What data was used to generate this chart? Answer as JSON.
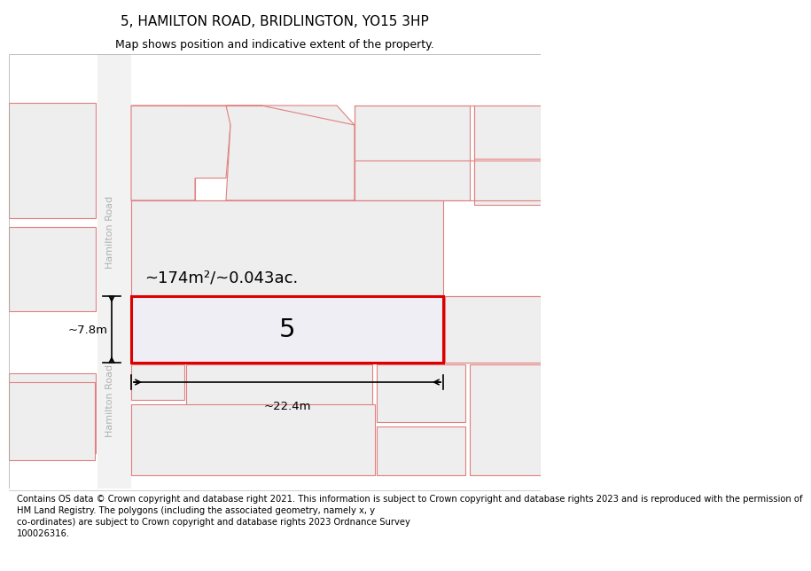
{
  "title": "5, HAMILTON ROAD, BRIDLINGTON, YO15 3HP",
  "subtitle": "Map shows position and indicative extent of the property.",
  "footer": "Contains OS data © Crown copyright and database right 2021. This information is subject to Crown copyright and database rights 2023 and is reproduced with the permission of\nHM Land Registry. The polygons (including the associated geometry, namely x, y\nco-ordinates) are subject to Crown copyright and database rights 2023 Ordnance Survey\n100026316.",
  "map_bg": "#ffffff",
  "map_area_color": "#eeeeee",
  "map_line_color": "#e08080",
  "highlight_color": "#dd0000",
  "highlight_fill": "#eeeef4",
  "area_label": "~174m²/~0.043ac.",
  "plot_number": "5",
  "width_label": "~22.4m",
  "height_label": "~7.8m",
  "road_label": "Hamilton Road",
  "footer_fontsize": 7.2,
  "title_fontsize": 11,
  "subtitle_fontsize": 9
}
